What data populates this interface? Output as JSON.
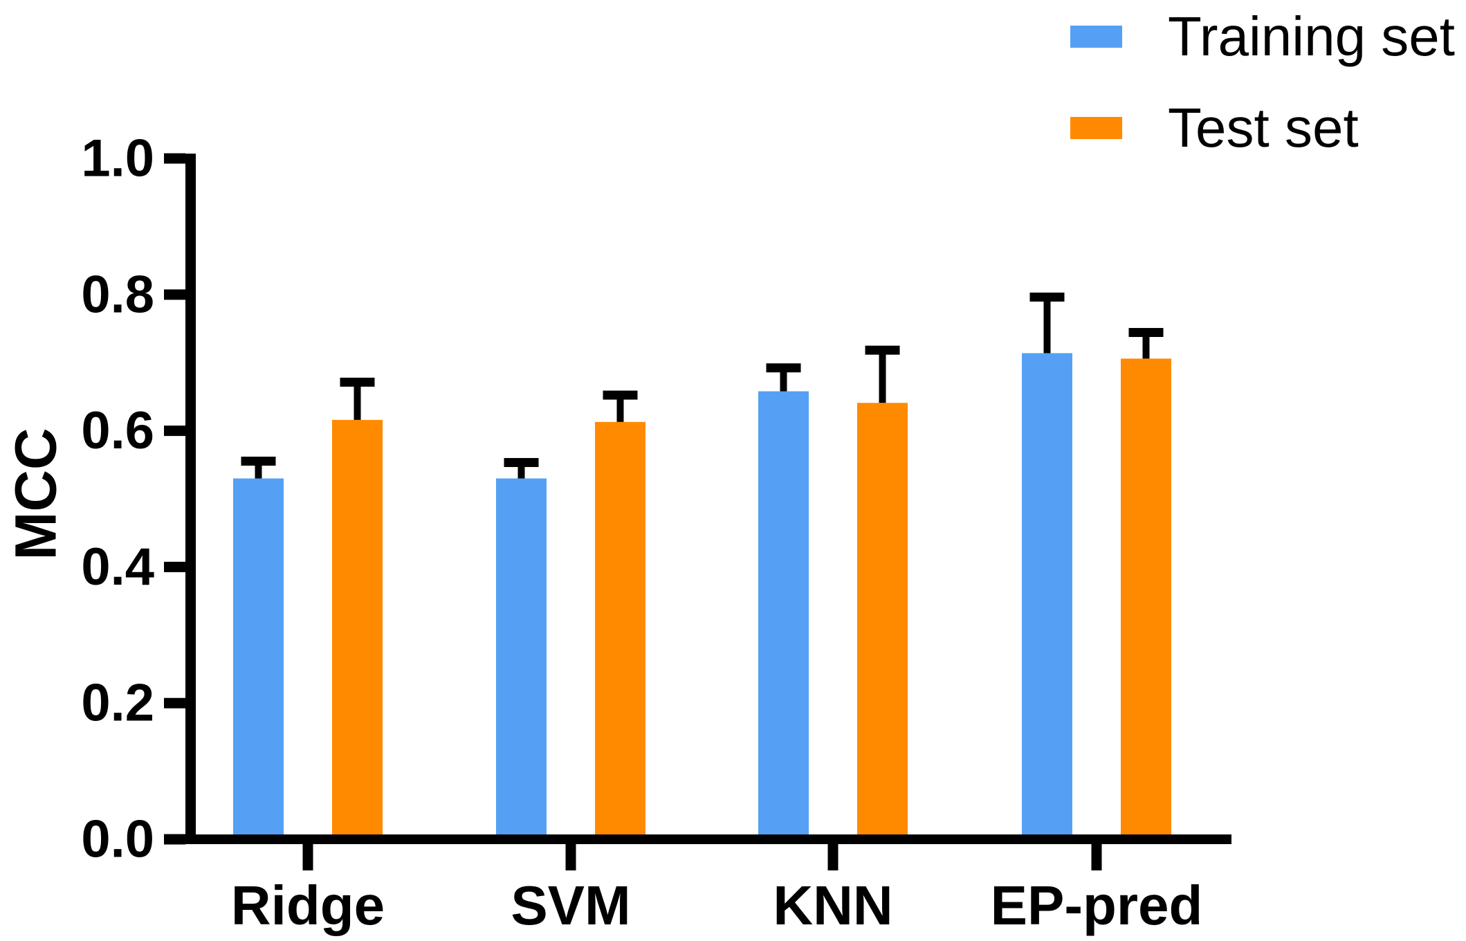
{
  "chart_data": {
    "type": "bar",
    "title": "",
    "xlabel": "",
    "ylabel": "MCC",
    "categories": [
      "Ridge",
      "SVM",
      "KNN",
      "EP-pred"
    ],
    "series": [
      {
        "name": "Training set",
        "color": "#55A0F5",
        "values": [
          0.53,
          0.53,
          0.658,
          0.714
        ],
        "errors": [
          0.032,
          0.03,
          0.041,
          0.089
        ]
      },
      {
        "name": "Test set",
        "color": "#FF8A00",
        "values": [
          0.616,
          0.613,
          0.641,
          0.706
        ],
        "errors": [
          0.062,
          0.046,
          0.084,
          0.045
        ]
      }
    ],
    "y_ticks": [
      0.0,
      0.2,
      0.4,
      0.6,
      0.8,
      1.0
    ],
    "y_tick_labels": [
      "0.0",
      "0.2",
      "0.4",
      "0.6",
      "0.8",
      "1.0"
    ],
    "ylim": [
      0,
      1
    ],
    "grid": false,
    "error_bars": "upper-only-with-caps",
    "legend_position": "top-right",
    "axis_color": "#000000",
    "background": "#FFFFFF"
  },
  "legend": {
    "items": [
      {
        "label": "Training set",
        "color": "#55A0F5"
      },
      {
        "label": "Test set",
        "color": "#FF8A00"
      }
    ]
  },
  "y_axis": {
    "label": "MCC"
  }
}
